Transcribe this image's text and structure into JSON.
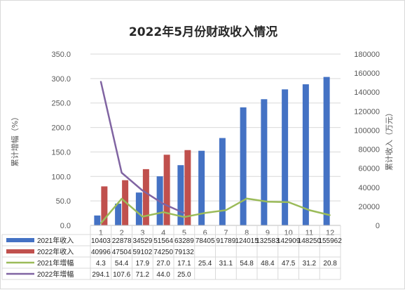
{
  "chart_data": {
    "type": "bar",
    "title": "2022年5月份财政收入情况",
    "ylabel_left": "累计增幅（%）",
    "ylabel_right": "累计收入（万元）",
    "categories": [
      "1",
      "2",
      "3",
      "4",
      "5",
      "6",
      "7",
      "8",
      "9",
      "10",
      "11",
      "12"
    ],
    "ylim_left": [
      0,
      350
    ],
    "ylim_right": [
      0,
      180000
    ],
    "left_ticks": [
      "0.0",
      "50.0",
      "100.0",
      "150.0",
      "200.0",
      "250.0",
      "300.0",
      "350.0"
    ],
    "right_ticks": [
      "0",
      "20000",
      "40000",
      "60000",
      "80000",
      "100000",
      "120000",
      "140000",
      "160000",
      "180000"
    ],
    "grid": true,
    "legend": "data-table-left",
    "series": [
      {
        "name": "2021年收入",
        "type": "bar",
        "axis": "right",
        "color": "#4472c4",
        "values": [
          10403,
          22878,
          34529,
          51564,
          63289,
          78405,
          91789,
          124015,
          132583,
          142909,
          148250,
          155962
        ],
        "labels": [
          "10403",
          "22878",
          "34529",
          "51564",
          "63289",
          "78405",
          "91789",
          "124015",
          "132583",
          "142909",
          "148250",
          "155962"
        ]
      },
      {
        "name": "2022年收入",
        "type": "bar",
        "axis": "right",
        "color": "#c0504d",
        "values": [
          40996,
          47504,
          59102,
          74250,
          79132,
          null,
          null,
          null,
          null,
          null,
          null,
          null
        ],
        "labels": [
          "40996",
          "47504",
          "59102",
          "74250",
          "79132",
          "",
          "",
          "",
          "",
          "",
          "",
          ""
        ]
      },
      {
        "name": "2021年增幅",
        "type": "line",
        "axis": "left",
        "color": "#9bbb59",
        "values": [
          4.3,
          54.4,
          17.9,
          27.0,
          17.1,
          25.4,
          31.1,
          54.8,
          48.4,
          47.5,
          31.2,
          20.8
        ],
        "labels": [
          "4.3",
          "54.4",
          "17.9",
          "27.0",
          "17.1",
          "25.4",
          "31.1",
          "54.8",
          "48.4",
          "47.5",
          "31.2",
          "20.8"
        ]
      },
      {
        "name": "2022年增幅",
        "type": "line",
        "axis": "left",
        "color": "#8064a2",
        "values": [
          294.1,
          107.6,
          71.2,
          44.0,
          25.0,
          null,
          null,
          null,
          null,
          null,
          null,
          null
        ],
        "labels": [
          "294.1",
          "107.6",
          "71.2",
          "44.0",
          "25.0",
          "",
          "",
          "",
          "",
          "",
          "",
          ""
        ]
      }
    ]
  }
}
